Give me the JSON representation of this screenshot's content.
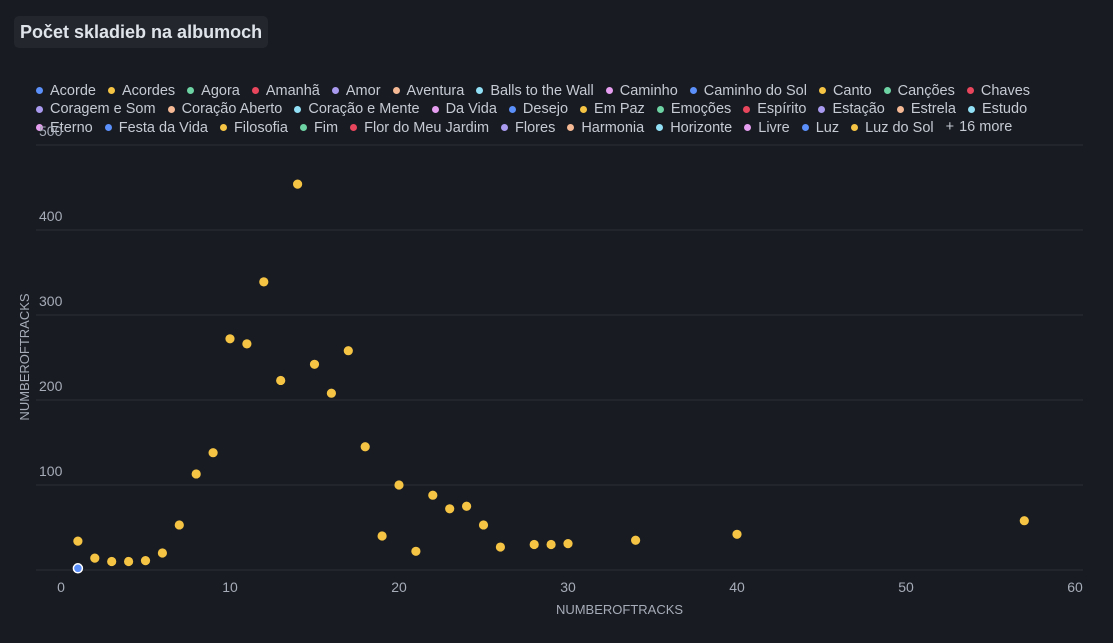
{
  "title": "Počet skladieb na albumoch",
  "legend": {
    "items": [
      {
        "label": "Acorde",
        "color": "#5b8ff9"
      },
      {
        "label": "Acordes",
        "color": "#f6c444"
      },
      {
        "label": "Agora",
        "color": "#6ed3a4"
      },
      {
        "label": "Amanhã",
        "color": "#e8465d"
      },
      {
        "label": "Amor",
        "color": "#a99af0"
      },
      {
        "label": "Aventura",
        "color": "#f5b995"
      },
      {
        "label": "Balls to the Wall",
        "color": "#91e0f5"
      },
      {
        "label": "Caminho",
        "color": "#e59ef0"
      },
      {
        "label": "Caminho do Sol",
        "color": "#5b8ff9"
      },
      {
        "label": "Canto",
        "color": "#f6c444"
      },
      {
        "label": "Canções",
        "color": "#6ed3a4"
      },
      {
        "label": "Chaves",
        "color": "#e8465d"
      },
      {
        "label": "Coragem e Som",
        "color": "#a99af0"
      },
      {
        "label": "Coração Aberto",
        "color": "#f5b995"
      },
      {
        "label": "Coração e Mente",
        "color": "#91e0f5"
      },
      {
        "label": "Da Vida",
        "color": "#e59ef0"
      },
      {
        "label": "Desejo",
        "color": "#5b8ff9"
      },
      {
        "label": "Em Paz",
        "color": "#f6c444"
      },
      {
        "label": "Emoções",
        "color": "#6ed3a4"
      },
      {
        "label": "Espírito",
        "color": "#e8465d"
      },
      {
        "label": "Estação",
        "color": "#a99af0"
      },
      {
        "label": "Estrela",
        "color": "#f5b995"
      },
      {
        "label": "Estudo",
        "color": "#91e0f5"
      },
      {
        "label": "Eterno",
        "color": "#e59ef0"
      },
      {
        "label": "Festa da Vida",
        "color": "#5b8ff9"
      },
      {
        "label": "Filosofia",
        "color": "#f6c444"
      },
      {
        "label": "Fim",
        "color": "#6ed3a4"
      },
      {
        "label": "Flor do Meu Jardim",
        "color": "#e8465d"
      },
      {
        "label": "Flores",
        "color": "#a99af0"
      },
      {
        "label": "Harmonia",
        "color": "#f5b995"
      },
      {
        "label": "Horizonte",
        "color": "#91e0f5"
      },
      {
        "label": "Livre",
        "color": "#e59ef0"
      },
      {
        "label": "Luz",
        "color": "#5b8ff9"
      },
      {
        "label": "Luz do Sol",
        "color": "#f6c444"
      }
    ],
    "more_label": "16 more",
    "more_symbol": "+"
  },
  "chart_data": {
    "type": "scatter",
    "xlabel": "NUMBEROFTRACKS",
    "ylabel": "NUMBEROFTRACKS",
    "xlim": [
      0,
      60
    ],
    "ylim": [
      0,
      500
    ],
    "x_ticks": [
      0,
      10,
      20,
      30,
      40,
      50,
      60
    ],
    "y_ticks": [
      100,
      200,
      300,
      400,
      500
    ],
    "grid": "horizontal",
    "series": [
      {
        "color": "#5b8ff9",
        "points": [
          [
            1,
            2
          ]
        ]
      },
      {
        "color": "#f6c444",
        "points": [
          [
            1,
            34
          ],
          [
            2,
            14
          ],
          [
            3,
            10
          ],
          [
            4,
            10
          ],
          [
            5,
            11
          ],
          [
            6,
            20
          ],
          [
            7,
            53
          ],
          [
            8,
            113
          ],
          [
            9,
            138
          ],
          [
            10,
            272
          ],
          [
            11,
            266
          ],
          [
            12,
            339
          ],
          [
            13,
            223
          ],
          [
            14,
            454
          ],
          [
            15,
            242
          ],
          [
            16,
            208
          ],
          [
            17,
            258
          ],
          [
            18,
            145
          ],
          [
            19,
            40
          ],
          [
            20,
            100
          ],
          [
            21,
            22
          ],
          [
            22,
            88
          ],
          [
            23,
            72
          ],
          [
            24,
            75
          ],
          [
            25,
            53
          ],
          [
            26,
            27
          ],
          [
            28,
            30
          ],
          [
            29,
            30
          ],
          [
            30,
            31
          ],
          [
            34,
            35
          ],
          [
            40,
            42
          ],
          [
            57,
            58
          ]
        ]
      }
    ]
  }
}
